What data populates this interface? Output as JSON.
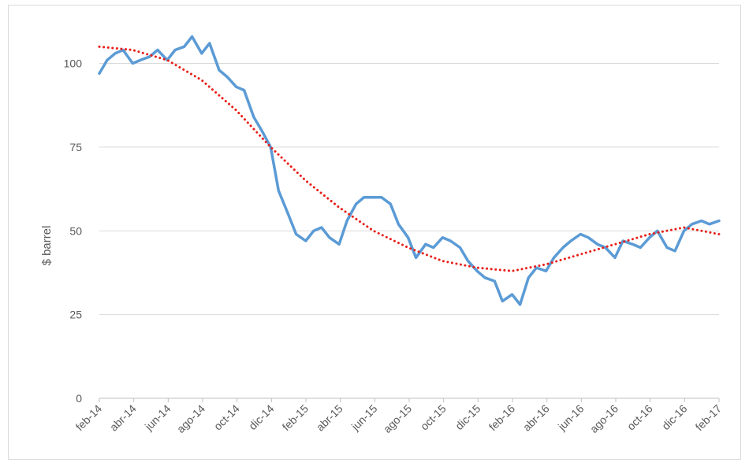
{
  "chart_data": {
    "type": "line",
    "title": "",
    "xlabel": "",
    "ylabel": "$ barrel",
    "ylim": [
      0,
      110
    ],
    "yticks": [
      0,
      25,
      50,
      75,
      100
    ],
    "grid": "horizontal",
    "x_ticks": [
      "feb-14",
      "abr-14",
      "jun-14",
      "ago-14",
      "oct-14",
      "dic-14",
      "feb-15",
      "abr-15",
      "jun-15",
      "ago-15",
      "oct-15",
      "dic-15",
      "feb-16",
      "abr-16",
      "jun-16",
      "ago-16",
      "oct-16",
      "dic-16",
      "feb-17"
    ],
    "series": [
      {
        "style": "solid",
        "color": "#5b9bd5",
        "points": [
          [
            "2014-02-01",
            97
          ],
          [
            "2014-02-15",
            101
          ],
          [
            "2014-03-01",
            103
          ],
          [
            "2014-03-15",
            104
          ],
          [
            "2014-04-01",
            100
          ],
          [
            "2014-04-15",
            101
          ],
          [
            "2014-05-01",
            102
          ],
          [
            "2014-05-15",
            104
          ],
          [
            "2014-06-01",
            101
          ],
          [
            "2014-06-15",
            104
          ],
          [
            "2014-07-01",
            105
          ],
          [
            "2014-07-15",
            108
          ],
          [
            "2014-08-01",
            103
          ],
          [
            "2014-08-15",
            106
          ],
          [
            "2014-09-01",
            98
          ],
          [
            "2014-09-15",
            96
          ],
          [
            "2014-10-01",
            93
          ],
          [
            "2014-10-15",
            92
          ],
          [
            "2014-11-01",
            84
          ],
          [
            "2014-11-15",
            80
          ],
          [
            "2014-12-01",
            75
          ],
          [
            "2014-12-15",
            62
          ],
          [
            "2015-01-01",
            55
          ],
          [
            "2015-01-15",
            49
          ],
          [
            "2015-02-01",
            47
          ],
          [
            "2015-02-15",
            50
          ],
          [
            "2015-03-01",
            51
          ],
          [
            "2015-03-15",
            48
          ],
          [
            "2015-04-01",
            46
          ],
          [
            "2015-04-15",
            53
          ],
          [
            "2015-05-01",
            58
          ],
          [
            "2015-05-15",
            60
          ],
          [
            "2015-06-01",
            60
          ],
          [
            "2015-06-15",
            60
          ],
          [
            "2015-07-01",
            58
          ],
          [
            "2015-07-15",
            52
          ],
          [
            "2015-08-01",
            48
          ],
          [
            "2015-08-15",
            42
          ],
          [
            "2015-09-01",
            46
          ],
          [
            "2015-09-15",
            45
          ],
          [
            "2015-10-01",
            48
          ],
          [
            "2015-10-15",
            47
          ],
          [
            "2015-11-01",
            45
          ],
          [
            "2015-11-15",
            41
          ],
          [
            "2015-12-01",
            38
          ],
          [
            "2015-12-15",
            36
          ],
          [
            "2016-01-01",
            35
          ],
          [
            "2016-01-15",
            29
          ],
          [
            "2016-02-01",
            31
          ],
          [
            "2016-02-15",
            28
          ],
          [
            "2016-03-01",
            36
          ],
          [
            "2016-03-15",
            39
          ],
          [
            "2016-04-01",
            38
          ],
          [
            "2016-04-15",
            42
          ],
          [
            "2016-05-01",
            45
          ],
          [
            "2016-05-15",
            47
          ],
          [
            "2016-06-01",
            49
          ],
          [
            "2016-06-15",
            48
          ],
          [
            "2016-07-01",
            46
          ],
          [
            "2016-07-15",
            45
          ],
          [
            "2016-08-01",
            42
          ],
          [
            "2016-08-15",
            47
          ],
          [
            "2016-09-01",
            46
          ],
          [
            "2016-09-15",
            45
          ],
          [
            "2016-10-01",
            48
          ],
          [
            "2016-10-15",
            50
          ],
          [
            "2016-11-01",
            45
          ],
          [
            "2016-11-15",
            44
          ],
          [
            "2016-12-01",
            50
          ],
          [
            "2016-12-15",
            52
          ],
          [
            "2017-01-01",
            53
          ],
          [
            "2017-01-15",
            52
          ],
          [
            "2017-02-01",
            53
          ]
        ]
      },
      {
        "style": "dotted",
        "color": "#e8201a",
        "points": [
          [
            "2014-02-01",
            105
          ],
          [
            "2014-04-01",
            104
          ],
          [
            "2014-06-01",
            101
          ],
          [
            "2014-08-01",
            95
          ],
          [
            "2014-10-01",
            86
          ],
          [
            "2014-12-01",
            75
          ],
          [
            "2015-02-01",
            65
          ],
          [
            "2015-04-01",
            57
          ],
          [
            "2015-06-01",
            50
          ],
          [
            "2015-08-01",
            45
          ],
          [
            "2015-10-01",
            41
          ],
          [
            "2015-12-01",
            39
          ],
          [
            "2016-02-01",
            38
          ],
          [
            "2016-04-01",
            40
          ],
          [
            "2016-06-01",
            43
          ],
          [
            "2016-08-01",
            46
          ],
          [
            "2016-10-01",
            49
          ],
          [
            "2016-12-01",
            51
          ],
          [
            "2017-02-01",
            49
          ]
        ]
      }
    ]
  }
}
